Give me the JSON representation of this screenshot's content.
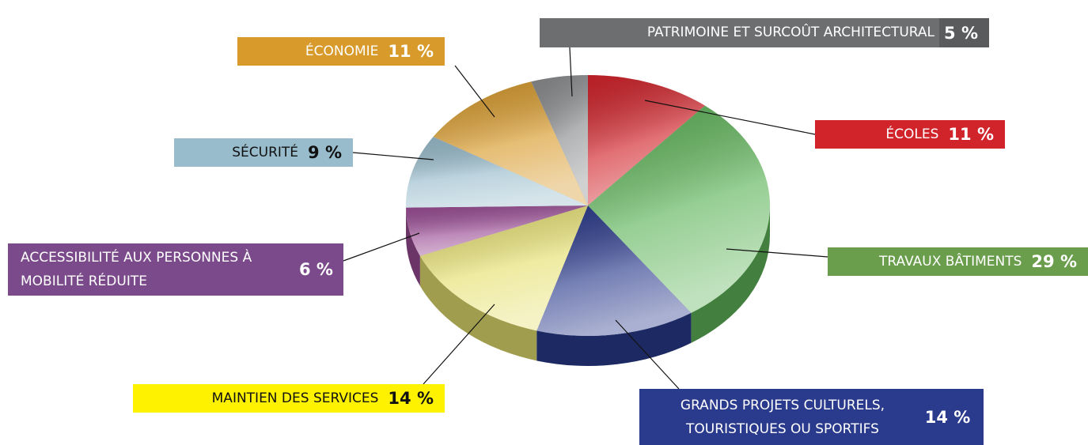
{
  "chart_data": {
    "type": "pie",
    "categories": [
      "ÉCOLES",
      "TRAVAUX BÂTIMENTS",
      "GRANDS PROJETS CULTURELS, TOURISTIQUES OU SPORTIFS",
      "MAINTIEN DES SERVICES",
      "ACCESSIBILITÉ AUX PERSONNES À MOBILITÉ RÉDUITE",
      "SÉCURITÉ",
      "ÉCONOMIE",
      "PATRIMOINE ET SURCOÛT ARCHITECTURAL"
    ],
    "values": [
      11,
      29,
      14,
      14,
      6,
      9,
      11,
      5
    ],
    "value_labels": [
      "11 %",
      "29 %",
      "14 %",
      "14 %",
      "6 %",
      "9 %",
      "11 %",
      "5 %"
    ],
    "colors": [
      "#d1232a",
      "#5fb55a",
      "#2a3a8c",
      "#e6e070",
      "#9a4c94",
      "#98bccc",
      "#d89a2a",
      "#8a8b8d"
    ]
  }
}
